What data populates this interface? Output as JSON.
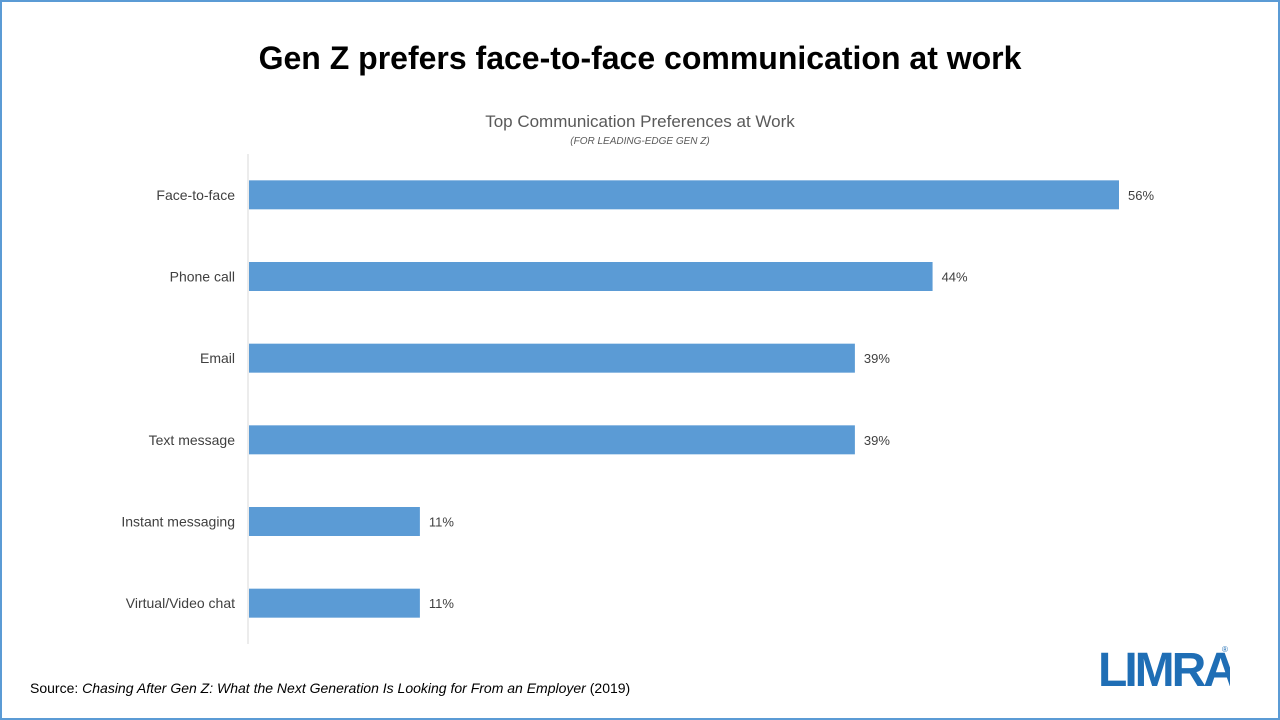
{
  "slide": {
    "title": "Gen Z prefers face-to-face  communication at work"
  },
  "chart_data": {
    "type": "bar",
    "orientation": "horizontal",
    "title": "Top Communication Preferences at Work",
    "subtitle": "(FOR LEADING-EDGE  GEN  Z)",
    "categories": [
      "Face-to-face",
      "Phone call",
      "Email",
      "Text message",
      "Instant messaging",
      "Virtual/Video chat"
    ],
    "values": [
      56,
      44,
      39,
      39,
      11,
      11
    ],
    "value_labels": [
      "56%",
      "44%",
      "39%",
      "39%",
      "11%",
      "11%"
    ],
    "xlim": [
      0,
      60
    ],
    "bar_color": "#5b9bd5",
    "grid": false,
    "legend": "none"
  },
  "footer": {
    "source_label": "Source: ",
    "source_title": "Chasing After Gen Z: What the Next Generation Is Looking for From an Employer",
    "source_year": " (2019)",
    "logo_text": "LIMRA",
    "logo_color": "#1f6eb5"
  }
}
